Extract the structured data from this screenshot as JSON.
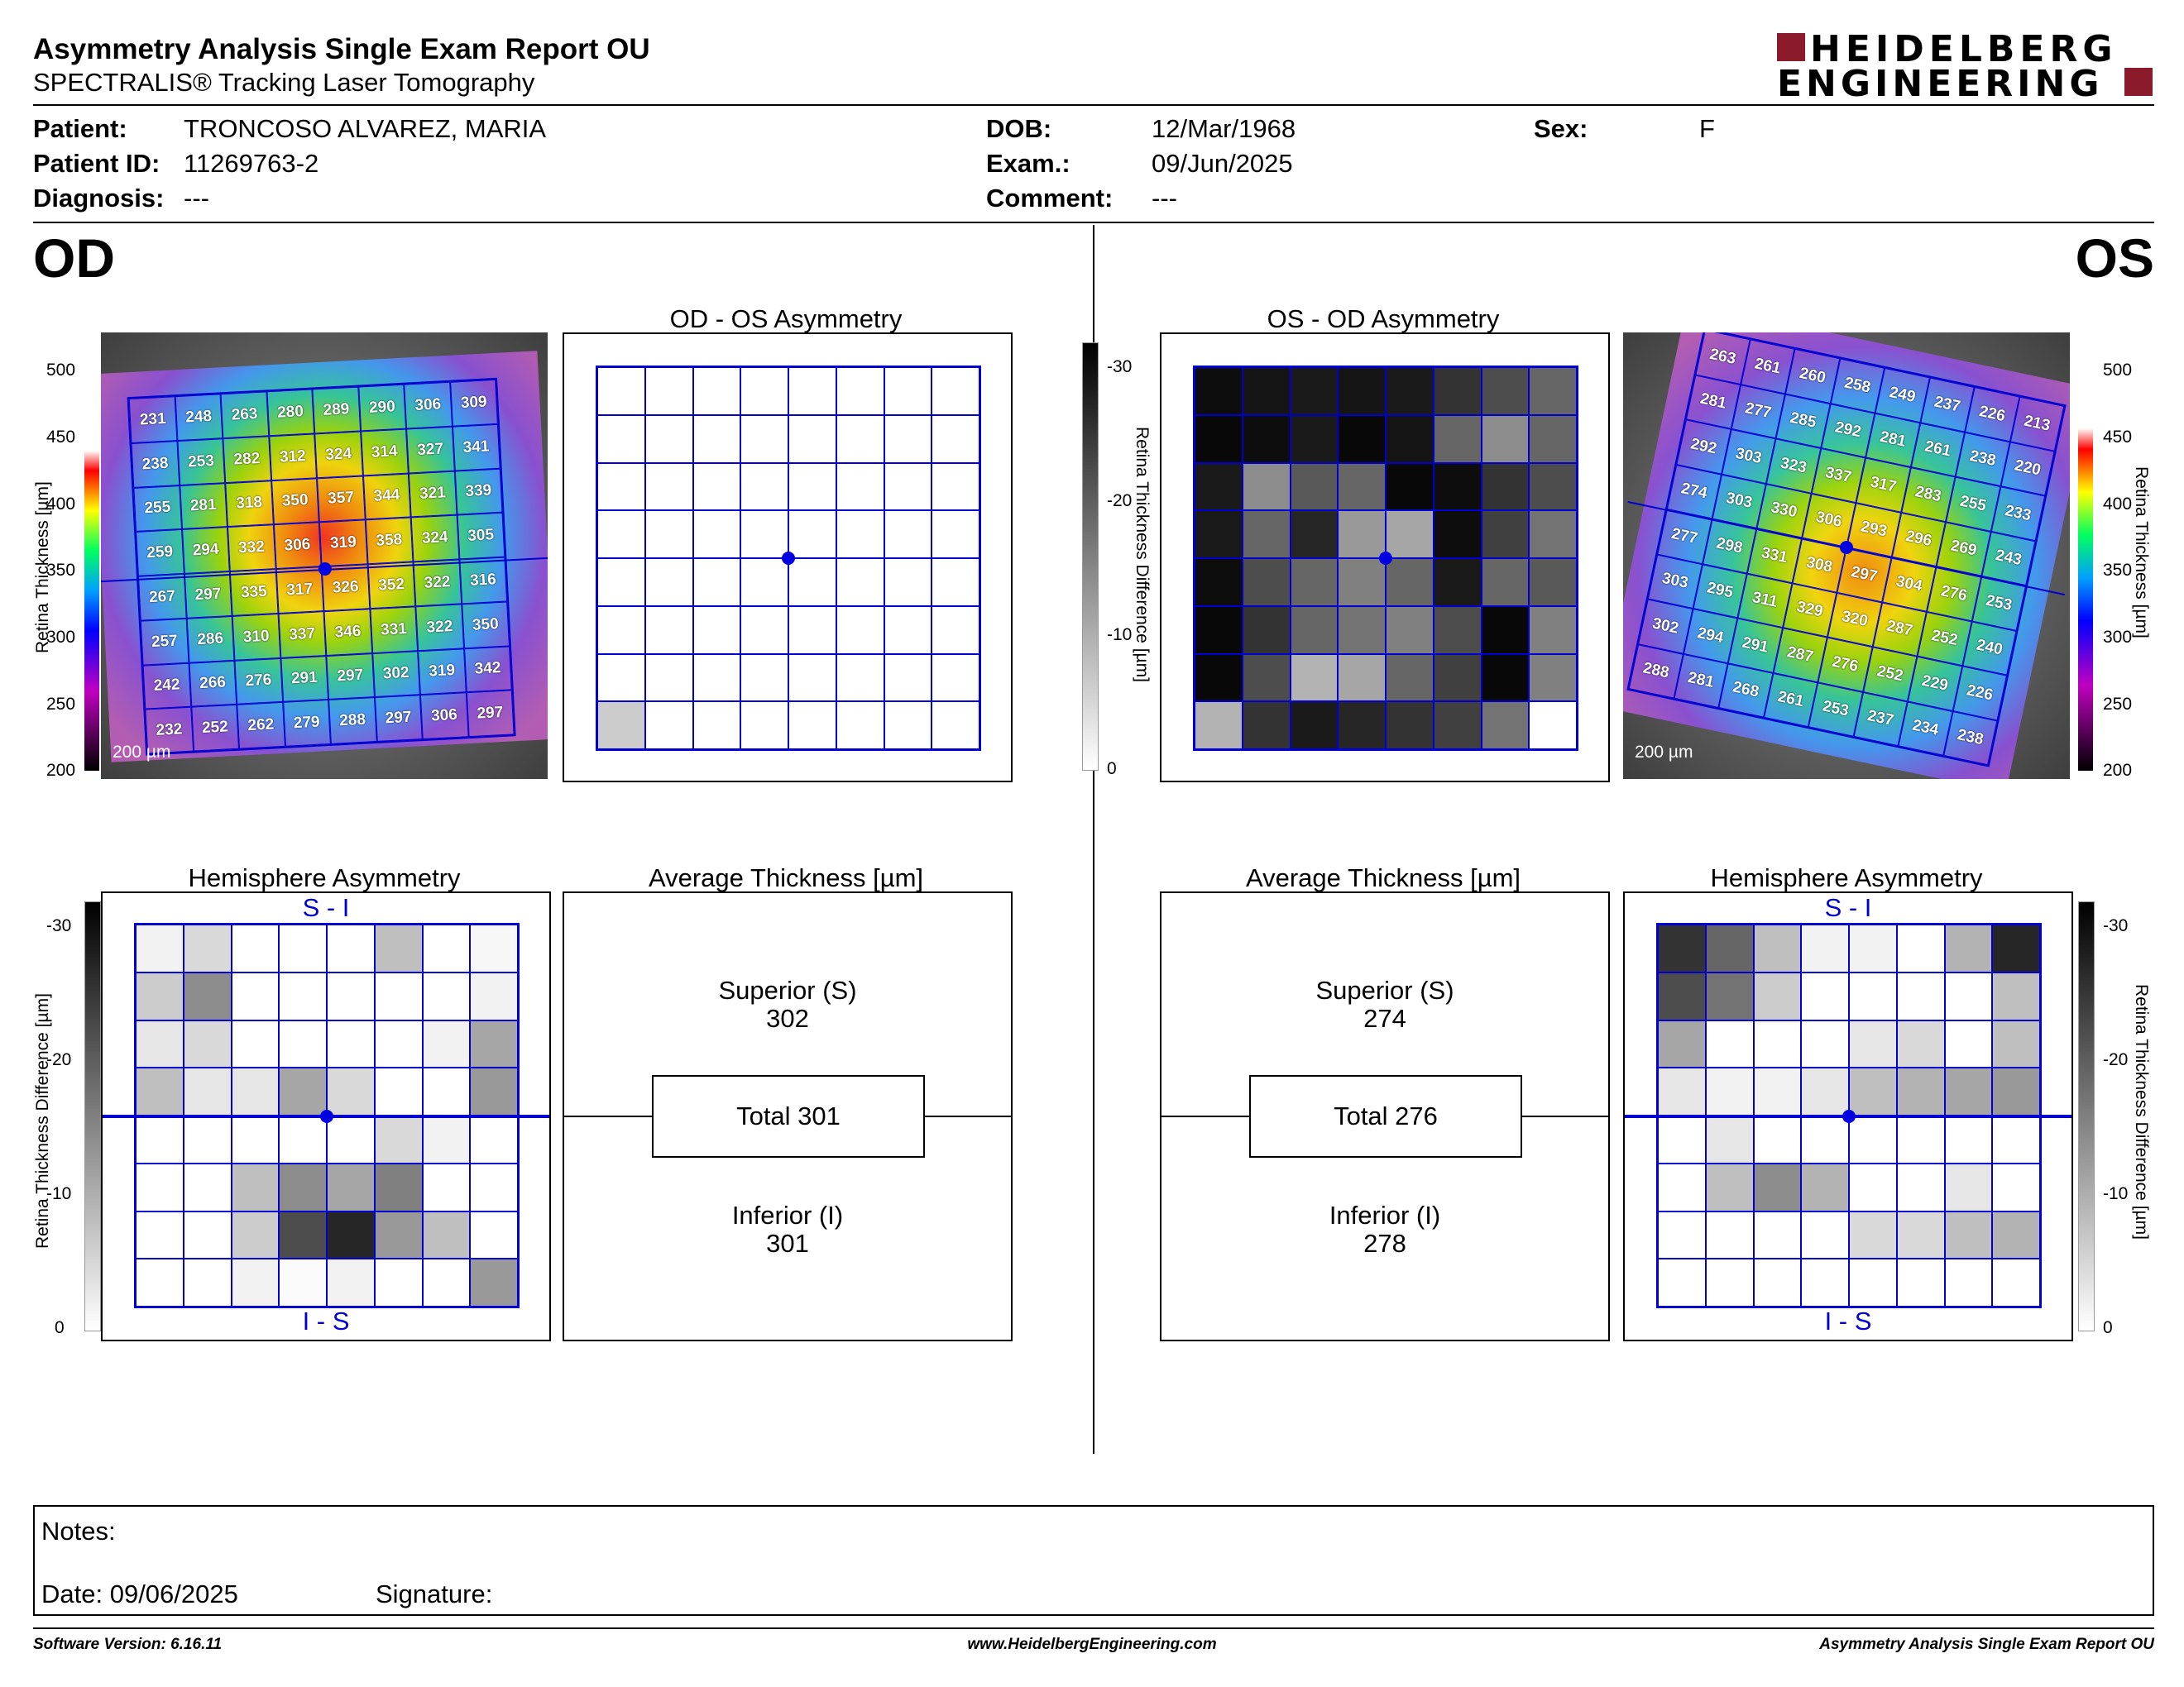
{
  "header": {
    "title": "Asymmetry Analysis Single Exam Report OU",
    "subtitle": "SPECTRALIS® Tracking Laser Tomography",
    "logo_line1": "HEIDELBERG",
    "logo_line2": "ENGINEERING",
    "logo_color": "#8b1a2b"
  },
  "patient": {
    "patient_label": "Patient:",
    "patient_value": "TRONCOSO ALVAREZ, MARIA",
    "id_label": "Patient ID:",
    "id_value": "11269763-2",
    "diagnosis_label": "Diagnosis:",
    "diagnosis_value": "---",
    "dob_label": "DOB:",
    "dob_value": "12/Mar/1968",
    "exam_label": "Exam.:",
    "exam_value": "09/Jun/2025",
    "comment_label": "Comment:",
    "comment_value": "---",
    "sex_label": "Sex:",
    "sex_value": "F"
  },
  "od": {
    "eye_label": "OD",
    "asym_title": "OD - OS Asymmetry",
    "hemi_title": "Hemisphere Asymmetry",
    "avg_title": "Average Thickness [µm]",
    "superior_label": "Superior (S)",
    "superior_value": "302",
    "total_label": "Total 301",
    "inferior_label": "Inferior (I)",
    "inferior_value": "301",
    "scale_label": "200 µm",
    "si_label": "S - I",
    "is_label": "I - S",
    "thickness": [
      [
        "231",
        "248",
        "263",
        "280",
        "289",
        "290",
        "306",
        "309"
      ],
      [
        "238",
        "253",
        "282",
        "312",
        "324",
        "314",
        "327",
        "341"
      ],
      [
        "255",
        "281",
        "318",
        "350",
        "357",
        "344",
        "321",
        "339"
      ],
      [
        "259",
        "294",
        "332",
        "306",
        "319",
        "358",
        "324",
        "305"
      ],
      [
        "267",
        "297",
        "335",
        "317",
        "326",
        "352",
        "322",
        "316"
      ],
      [
        "257",
        "286",
        "310",
        "337",
        "346",
        "331",
        "322",
        "350"
      ],
      [
        "242",
        "266",
        "276",
        "291",
        "297",
        "302",
        "319",
        "342"
      ],
      [
        "232",
        "252",
        "262",
        "279",
        "288",
        "297",
        "306",
        "297"
      ]
    ],
    "asym_shades": [
      [
        0,
        0,
        0,
        0,
        0,
        0,
        0,
        0
      ],
      [
        0,
        0,
        0,
        0,
        0,
        0,
        0,
        0
      ],
      [
        0,
        0,
        0,
        0,
        0,
        0,
        0,
        0
      ],
      [
        0,
        0,
        0,
        0,
        0,
        0,
        0,
        0
      ],
      [
        0,
        0,
        0,
        0,
        0,
        0,
        0,
        0
      ],
      [
        0,
        0,
        0,
        0,
        0,
        0,
        0,
        0
      ],
      [
        0,
        0,
        0,
        0,
        0,
        0,
        0,
        0
      ],
      [
        0.2,
        0,
        0,
        0,
        0,
        0,
        0,
        0
      ]
    ],
    "hemi_shades": [
      [
        0.05,
        0.15,
        0,
        0,
        0,
        0.25,
        0,
        0.03
      ],
      [
        0.2,
        0.45,
        0,
        0,
        0,
        0,
        0,
        0.05
      ],
      [
        0.1,
        0.15,
        0,
        0,
        0,
        0,
        0.05,
        0.35
      ],
      [
        0.25,
        0.1,
        0.1,
        0.35,
        0.15,
        0,
        0,
        0.4
      ],
      [
        0,
        0,
        0,
        0,
        0,
        0.15,
        0.05,
        0
      ],
      [
        0,
        0,
        0.25,
        0.45,
        0.35,
        0.5,
        0,
        0
      ],
      [
        0,
        0,
        0.2,
        0.7,
        0.85,
        0.4,
        0.25,
        0
      ],
      [
        0,
        0,
        0.05,
        0.02,
        0.05,
        0,
        0,
        0.4
      ]
    ]
  },
  "os": {
    "eye_label": "OS",
    "asym_title": "OS - OD Asymmetry",
    "hemi_title": "Hemisphere Asymmetry",
    "avg_title": "Average Thickness [µm]",
    "superior_label": "Superior (S)",
    "superior_value": "274",
    "total_label": "Total 276",
    "inferior_label": "Inferior (I)",
    "inferior_value": "278",
    "scale_label": "200 µm",
    "si_label": "S - I",
    "is_label": "I - S",
    "thickness": [
      [
        "263",
        "261",
        "260",
        "258",
        "249",
        "237",
        "226",
        "213"
      ],
      [
        "281",
        "277",
        "285",
        "292",
        "281",
        "261",
        "238",
        "220"
      ],
      [
        "292",
        "303",
        "323",
        "337",
        "317",
        "283",
        "255",
        "233"
      ],
      [
        "274",
        "303",
        "330",
        "306",
        "293",
        "296",
        "269",
        "243"
      ],
      [
        "277",
        "298",
        "331",
        "308",
        "297",
        "304",
        "276",
        "253"
      ],
      [
        "303",
        "295",
        "311",
        "329",
        "320",
        "287",
        "252",
        "240"
      ],
      [
        "302",
        "294",
        "291",
        "287",
        "276",
        "252",
        "229",
        "226"
      ],
      [
        "288",
        "281",
        "268",
        "261",
        "253",
        "237",
        "234",
        "238"
      ]
    ],
    "asym_shades": [
      [
        0.95,
        0.92,
        0.9,
        0.92,
        0.9,
        0.8,
        0.7,
        0.6
      ],
      [
        0.97,
        0.95,
        0.9,
        0.97,
        0.92,
        0.6,
        0.45,
        0.6
      ],
      [
        0.9,
        0.45,
        0.65,
        0.6,
        0.97,
        0.95,
        0.8,
        0.7
      ],
      [
        0.9,
        0.6,
        0.85,
        0.4,
        0.35,
        0.95,
        0.75,
        0.55
      ],
      [
        0.95,
        0.7,
        0.6,
        0.5,
        0.6,
        0.9,
        0.6,
        0.65
      ],
      [
        0.97,
        0.8,
        0.6,
        0.55,
        0.5,
        0.7,
        0.97,
        0.5
      ],
      [
        0.97,
        0.7,
        0.3,
        0.35,
        0.6,
        0.75,
        0.97,
        0.5
      ],
      [
        0.3,
        0.8,
        0.9,
        0.85,
        0.8,
        0.75,
        0.55,
        0
      ]
    ],
    "hemi_shades": [
      [
        0.8,
        0.6,
        0.25,
        0.05,
        0.05,
        0,
        0.3,
        0.85
      ],
      [
        0.7,
        0.55,
        0.2,
        0,
        0,
        0,
        0,
        0.25
      ],
      [
        0.35,
        0,
        0,
        0,
        0.1,
        0.15,
        0,
        0.25
      ],
      [
        0.1,
        0.05,
        0.05,
        0.1,
        0.25,
        0.3,
        0.35,
        0.4
      ],
      [
        0,
        0.1,
        0,
        0,
        0,
        0,
        0,
        0
      ],
      [
        0,
        0.25,
        0.45,
        0.3,
        0,
        0,
        0.1,
        0
      ],
      [
        0,
        0,
        0,
        0,
        0.15,
        0.15,
        0.25,
        0.3
      ],
      [
        0,
        0,
        0,
        0,
        0,
        0,
        0,
        0
      ]
    ]
  },
  "thickness_scale": [
    "500",
    "450",
    "400",
    "350",
    "300",
    "250",
    "200"
  ],
  "thickness_axis_label": "Retina Thickness [µm]",
  "diff_scale": [
    "-30",
    "-20",
    "-10",
    "0"
  ],
  "diff_axis_label": "Retina Thickness Difference [µm]",
  "notes": {
    "notes_label": "Notes:",
    "date_label": "Date: 09/06/2025",
    "signature_label": "Signature:"
  },
  "footer": {
    "software": "Software Version: 6.16.11",
    "website": "www.HeidelbergEngineering.com",
    "report_name": "Asymmetry Analysis Single Exam Report OU"
  }
}
